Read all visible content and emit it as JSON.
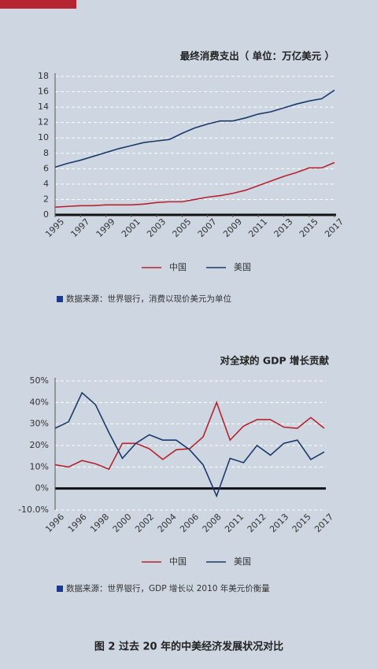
{
  "chart_data": [
    {
      "type": "line",
      "title": "最终消费支出（ 单位：万亿美元 ）",
      "x": [
        1995,
        1996,
        1997,
        1998,
        1999,
        2000,
        2001,
        2002,
        2003,
        2004,
        2005,
        2006,
        2007,
        2008,
        2009,
        2010,
        2011,
        2012,
        2013,
        2014,
        2015,
        2016,
        2017
      ],
      "series": [
        {
          "name": "中国",
          "color": "#b5242f",
          "values": [
            1.0,
            1.1,
            1.2,
            1.2,
            1.3,
            1.3,
            1.3,
            1.4,
            1.6,
            1.7,
            1.7,
            2.0,
            2.3,
            2.5,
            2.8,
            3.2,
            3.8,
            4.4,
            5.0,
            5.5,
            6.1,
            6.1,
            6.8
          ]
        },
        {
          "name": "美国",
          "color": "#1b3a6b",
          "values": [
            6.2,
            6.7,
            7.1,
            7.6,
            8.1,
            8.6,
            9.0,
            9.4,
            9.6,
            9.8,
            10.6,
            11.3,
            11.8,
            12.2,
            12.2,
            12.6,
            13.1,
            13.4,
            13.9,
            14.4,
            14.8,
            15.1,
            16.2
          ]
        }
      ],
      "xlim": [
        1995,
        2017
      ],
      "xticks": [
        1995,
        1997,
        1999,
        2001,
        2003,
        2005,
        2007,
        2009,
        2011,
        2013,
        2015,
        2017
      ],
      "ylim": [
        0,
        18
      ],
      "yticks": [
        0,
        2,
        4,
        6,
        8,
        10,
        12,
        14,
        16,
        18
      ],
      "grid": true,
      "source": "数据来源：世界银行，消费以现价美元为单位"
    },
    {
      "type": "line",
      "title": "对全球的 GDP 增长贡献",
      "x_tick_labels": [
        "1996",
        "1996",
        "1998",
        "2000",
        "2002",
        "2004",
        "2006",
        "2008",
        "2011",
        "2012",
        "2013",
        "2015",
        "2017"
      ],
      "series": [
        {
          "name": "中国",
          "color": "#b5242f",
          "values": [
            11,
            10,
            13,
            11.5,
            9,
            21,
            21,
            18.5,
            13.5,
            18,
            18.5,
            24,
            40,
            22.5,
            29,
            32,
            32,
            28.5,
            28,
            33,
            28
          ]
        },
        {
          "name": "美国",
          "color": "#1b3a6b",
          "values": [
            28,
            31,
            44.5,
            39,
            26,
            14,
            21,
            25,
            22.5,
            22.5,
            18,
            11,
            -3.5,
            14,
            12,
            20,
            15.5,
            21,
            22.5,
            13.5,
            17
          ]
        }
      ],
      "ylim": [
        -10,
        50
      ],
      "yticks": [
        {
          "value": -10,
          "label": "-10.0%"
        },
        {
          "value": 0,
          "label": "0%"
        },
        {
          "value": 10,
          "label": "10%"
        },
        {
          "value": 20,
          "label": "20%"
        },
        {
          "value": 30,
          "label": "30%"
        },
        {
          "value": 40,
          "label": "40%"
        },
        {
          "value": 50,
          "label": "50%"
        }
      ],
      "grid": true,
      "source": "数据来源：世界银行，GDP 增长以 2010 年美元价衡量"
    }
  ],
  "caption": "图 2 过去 20 年的中美经济发展状况对比"
}
